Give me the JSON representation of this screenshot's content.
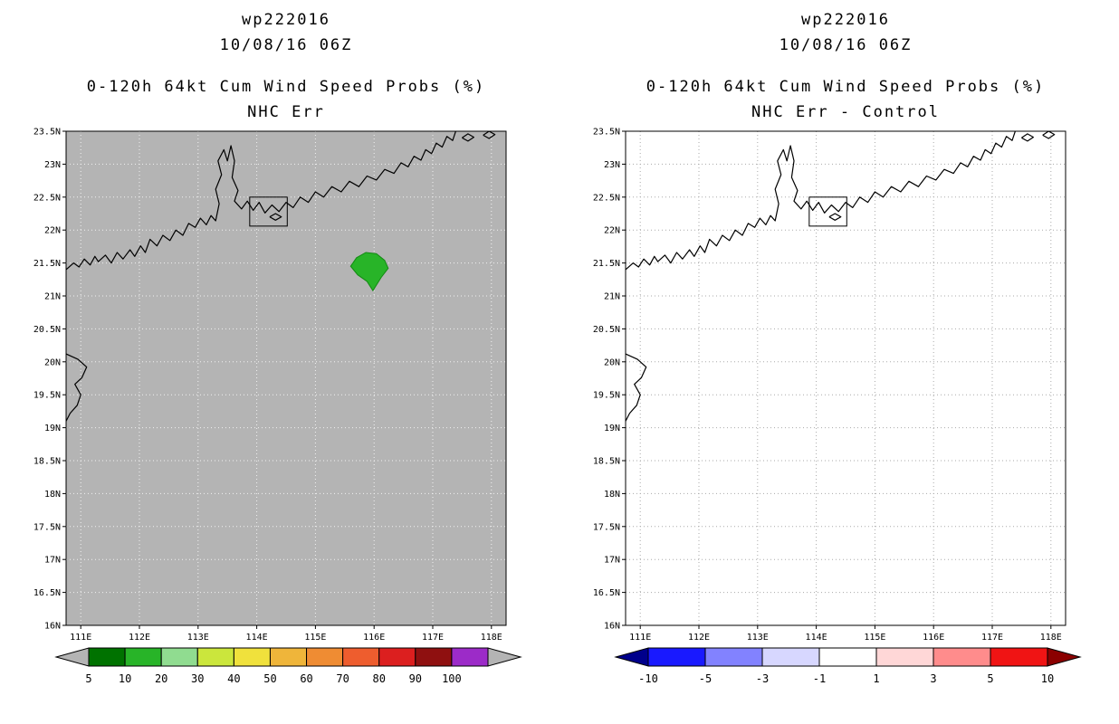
{
  "page": {
    "background": "#ffffff"
  },
  "chart_data": [
    {
      "type": "map_contour",
      "storm_id": "wp222016",
      "init_time": "10/08/16 06Z",
      "title": "0-120h 64kt Cum Wind Speed Probs (%)",
      "subtitle": "NHC Err",
      "map_background": "#b4b4b4",
      "grid_color": "#f2f2f2",
      "grid": "dotted",
      "extent": {
        "lon_min": 110.75,
        "lon_max": 118.25,
        "lat_min": 16.0,
        "lat_max": 23.5
      },
      "lat_ticks": [
        {
          "v": 23.5,
          "t": "23.5N"
        },
        {
          "v": 23.0,
          "t": "23N"
        },
        {
          "v": 22.5,
          "t": "22.5N"
        },
        {
          "v": 22.0,
          "t": "22N"
        },
        {
          "v": 21.5,
          "t": "21.5N"
        },
        {
          "v": 21.0,
          "t": "21N"
        },
        {
          "v": 20.5,
          "t": "20.5N"
        },
        {
          "v": 20.0,
          "t": "20N"
        },
        {
          "v": 19.5,
          "t": "19.5N"
        },
        {
          "v": 19.0,
          "t": "19N"
        },
        {
          "v": 18.5,
          "t": "18.5N"
        },
        {
          "v": 18.0,
          "t": "18N"
        },
        {
          "v": 17.5,
          "t": "17.5N"
        },
        {
          "v": 17.0,
          "t": "17N"
        },
        {
          "v": 16.5,
          "t": "16.5N"
        },
        {
          "v": 16.0,
          "t": "16N"
        }
      ],
      "lon_ticks": [
        {
          "v": 111,
          "t": "111E"
        },
        {
          "v": 112,
          "t": "112E"
        },
        {
          "v": 113,
          "t": "113E"
        },
        {
          "v": 114,
          "t": "114E"
        },
        {
          "v": 115,
          "t": "115E"
        },
        {
          "v": 116,
          "t": "116E"
        },
        {
          "v": 117,
          "t": "117E"
        },
        {
          "v": 118,
          "t": "118E"
        }
      ],
      "regions": [
        {
          "name": "64kt cumulative probability region",
          "prob_range": "10-20",
          "fill": "#28b428",
          "stroke": "#128a12",
          "polygon_lonlat": [
            [
              115.6,
              21.45
            ],
            [
              115.7,
              21.58
            ],
            [
              115.86,
              21.66
            ],
            [
              116.04,
              21.64
            ],
            [
              116.18,
              21.54
            ],
            [
              116.24,
              21.42
            ],
            [
              116.12,
              21.28
            ],
            [
              115.98,
              21.08
            ],
            [
              115.88,
              21.22
            ],
            [
              115.72,
              21.32
            ]
          ]
        }
      ],
      "colorbar": {
        "units": "%",
        "arrow_left_color": "#b4b4b4",
        "arrow_right_color": "#b4b4b4",
        "segments": [
          {
            "range": "5-10",
            "color": "#007200"
          },
          {
            "range": "10-20",
            "color": "#28b428"
          },
          {
            "range": "20-30",
            "color": "#90dc90"
          },
          {
            "range": "30-40",
            "color": "#cbe63c"
          },
          {
            "range": "40-50",
            "color": "#f0e13c"
          },
          {
            "range": "50-60",
            "color": "#efb53a"
          },
          {
            "range": "60-70",
            "color": "#ef8c33"
          },
          {
            "range": "70-80",
            "color": "#ee5d2e"
          },
          {
            "range": "80-90",
            "color": "#dc1f1f"
          },
          {
            "range": "90-100",
            "color": "#8f1010"
          },
          {
            "range": ">100",
            "color": "#9c2bc8"
          }
        ],
        "tick_labels": [
          "5",
          "10",
          "20",
          "30",
          "40",
          "50",
          "60",
          "70",
          "80",
          "90",
          "100"
        ]
      }
    },
    {
      "type": "map_contour",
      "storm_id": "wp222016",
      "init_time": "10/08/16 06Z",
      "title": "0-120h 64kt Cum Wind Speed Probs (%)",
      "subtitle": "NHC Err - Control",
      "map_background": "#ffffff",
      "grid_color": "#aaaaaa",
      "grid": "dotted",
      "extent": {
        "lon_min": 110.75,
        "lon_max": 118.25,
        "lat_min": 16.0,
        "lat_max": 23.5
      },
      "lat_ticks": [
        {
          "v": 23.5,
          "t": "23.5N"
        },
        {
          "v": 23.0,
          "t": "23N"
        },
        {
          "v": 22.5,
          "t": "22.5N"
        },
        {
          "v": 22.0,
          "t": "22N"
        },
        {
          "v": 21.5,
          "t": "21.5N"
        },
        {
          "v": 21.0,
          "t": "21N"
        },
        {
          "v": 20.5,
          "t": "20.5N"
        },
        {
          "v": 20.0,
          "t": "20N"
        },
        {
          "v": 19.5,
          "t": "19.5N"
        },
        {
          "v": 19.0,
          "t": "19N"
        },
        {
          "v": 18.5,
          "t": "18.5N"
        },
        {
          "v": 18.0,
          "t": "18N"
        },
        {
          "v": 17.5,
          "t": "17.5N"
        },
        {
          "v": 17.0,
          "t": "17N"
        },
        {
          "v": 16.5,
          "t": "16.5N"
        },
        {
          "v": 16.0,
          "t": "16N"
        }
      ],
      "lon_ticks": [
        {
          "v": 111,
          "t": "111E"
        },
        {
          "v": 112,
          "t": "112E"
        },
        {
          "v": 113,
          "t": "113E"
        },
        {
          "v": 114,
          "t": "114E"
        },
        {
          "v": 115,
          "t": "115E"
        },
        {
          "v": 116,
          "t": "116E"
        },
        {
          "v": 117,
          "t": "117E"
        },
        {
          "v": 118,
          "t": "118E"
        }
      ],
      "regions": [],
      "colorbar": {
        "units": "%",
        "arrow_left_color": "#00008b",
        "arrow_right_color": "#8b0000",
        "segments": [
          {
            "range": "-10 to -5",
            "color": "#1919ff"
          },
          {
            "range": "-5 to -3",
            "color": "#8282ff"
          },
          {
            "range": "-3 to -1",
            "color": "#d7d7ff"
          },
          {
            "range": "-1 to 1",
            "color": "#ffffff"
          },
          {
            "range": "1 to 3",
            "color": "#ffd7d7"
          },
          {
            "range": "3 to 5",
            "color": "#ff8c8c"
          },
          {
            "range": "5 to 10",
            "color": "#f01414"
          }
        ],
        "tick_labels": [
          "-10",
          "-5",
          "-3",
          "-1",
          "1",
          "3",
          "5",
          "10"
        ]
      }
    }
  ],
  "map_geography": {
    "coastlines": [
      [
        [
          110.75,
          21.4
        ],
        [
          110.88,
          21.5
        ],
        [
          110.97,
          21.44
        ],
        [
          111.06,
          21.56
        ],
        [
          111.16,
          21.47
        ],
        [
          111.24,
          21.6
        ],
        [
          111.3,
          21.52
        ],
        [
          111.42,
          21.62
        ],
        [
          111.52,
          21.5
        ],
        [
          111.62,
          21.66
        ],
        [
          111.72,
          21.56
        ],
        [
          111.84,
          21.7
        ],
        [
          111.92,
          21.6
        ],
        [
          112.02,
          21.76
        ],
        [
          112.1,
          21.66
        ],
        [
          112.18,
          21.86
        ],
        [
          112.3,
          21.76
        ],
        [
          112.4,
          21.92
        ],
        [
          112.52,
          21.84
        ],
        [
          112.62,
          22.0
        ],
        [
          112.74,
          21.92
        ],
        [
          112.84,
          22.1
        ],
        [
          112.95,
          22.04
        ],
        [
          113.04,
          22.18
        ],
        [
          113.14,
          22.08
        ],
        [
          113.22,
          22.22
        ],
        [
          113.3,
          22.14
        ],
        [
          113.36,
          22.4
        ],
        [
          113.3,
          22.62
        ],
        [
          113.4,
          22.84
        ],
        [
          113.34,
          23.05
        ],
        [
          113.44,
          23.22
        ],
        [
          113.5,
          23.05
        ],
        [
          113.56,
          23.28
        ],
        [
          113.62,
          23.05
        ],
        [
          113.58,
          22.8
        ],
        [
          113.68,
          22.6
        ],
        [
          113.62,
          22.44
        ],
        [
          113.74,
          22.32
        ],
        [
          113.84,
          22.44
        ],
        [
          113.94,
          22.3
        ],
        [
          114.04,
          22.42
        ],
        [
          114.14,
          22.26
        ],
        [
          114.26,
          22.38
        ],
        [
          114.38,
          22.28
        ],
        [
          114.5,
          22.42
        ],
        [
          114.62,
          22.34
        ],
        [
          114.74,
          22.5
        ],
        [
          114.88,
          22.42
        ],
        [
          115.0,
          22.58
        ],
        [
          115.14,
          22.5
        ],
        [
          115.28,
          22.66
        ],
        [
          115.44,
          22.58
        ],
        [
          115.58,
          22.74
        ],
        [
          115.74,
          22.66
        ],
        [
          115.88,
          22.82
        ],
        [
          116.04,
          22.76
        ],
        [
          116.18,
          22.92
        ],
        [
          116.34,
          22.86
        ],
        [
          116.46,
          23.02
        ],
        [
          116.58,
          22.96
        ],
        [
          116.68,
          23.12
        ],
        [
          116.8,
          23.06
        ],
        [
          116.88,
          23.22
        ],
        [
          116.98,
          23.16
        ],
        [
          117.06,
          23.32
        ],
        [
          117.16,
          23.26
        ],
        [
          117.24,
          23.42
        ],
        [
          117.34,
          23.36
        ],
        [
          117.4,
          23.52
        ]
      ],
      [
        [
          110.75,
          20.12
        ],
        [
          110.95,
          20.04
        ],
        [
          111.1,
          19.92
        ],
        [
          111.02,
          19.76
        ],
        [
          110.9,
          19.66
        ],
        [
          111.0,
          19.5
        ],
        [
          110.94,
          19.34
        ],
        [
          110.82,
          19.22
        ],
        [
          110.75,
          19.1
        ]
      ],
      [
        [
          114.22,
          22.2
        ],
        [
          114.32,
          22.15
        ],
        [
          114.42,
          22.2
        ],
        [
          114.32,
          22.25
        ],
        [
          114.22,
          22.2
        ]
      ],
      [
        [
          117.5,
          23.4
        ],
        [
          117.6,
          23.35
        ],
        [
          117.7,
          23.41
        ],
        [
          117.6,
          23.46
        ],
        [
          117.5,
          23.4
        ]
      ],
      [
        [
          117.86,
          23.44
        ],
        [
          117.96,
          23.39
        ],
        [
          118.06,
          23.45
        ],
        [
          117.96,
          23.5
        ],
        [
          117.86,
          23.44
        ]
      ]
    ],
    "box_lonlat": {
      "lon_min": 113.88,
      "lon_max": 114.52,
      "lat_min": 22.06,
      "lat_max": 22.5
    }
  }
}
